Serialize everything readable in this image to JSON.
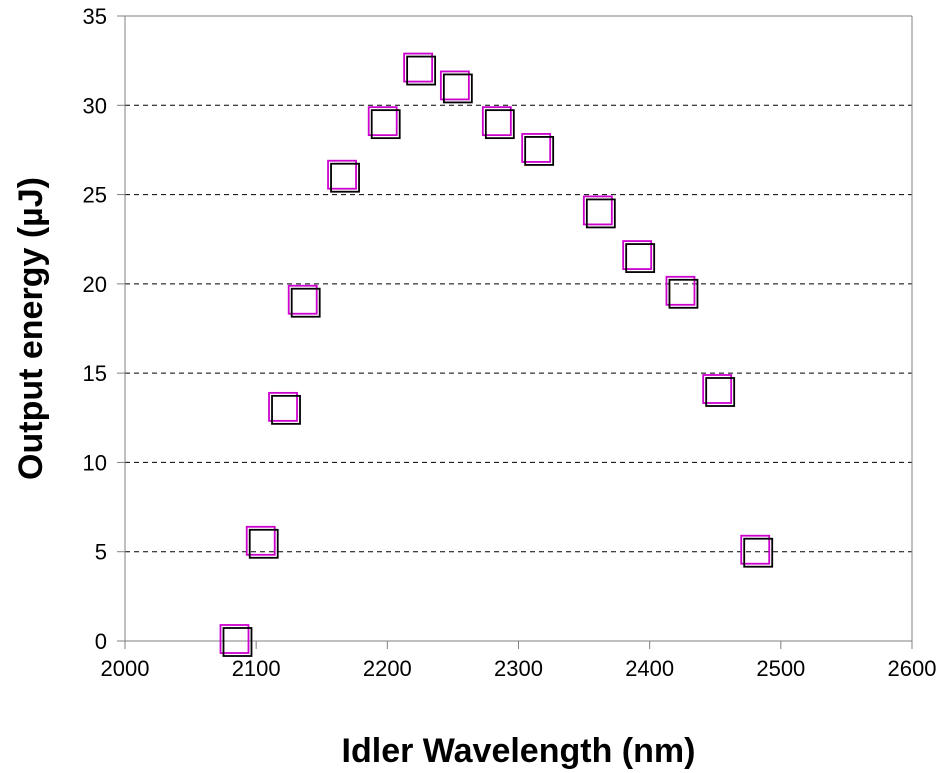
{
  "chart_data": {
    "type": "scatter",
    "title": "",
    "xlabel": "Idler Wavelength (nm)",
    "ylabel": "Output energy (µJ)",
    "xlim": [
      2000,
      2600
    ],
    "ylim": [
      0,
      35
    ],
    "xticks": [
      2000,
      2100,
      2200,
      2300,
      2400,
      2500,
      2600
    ],
    "yticks": [
      0,
      5,
      10,
      15,
      20,
      25,
      30,
      35
    ],
    "grid": "horizontal dashed",
    "marker": "hollow square",
    "colors": {
      "marker_front": "#000000",
      "marker_back": "#cc00cc",
      "grid": "#000000",
      "axis": "#808080"
    },
    "series": [
      {
        "x": [
          2085,
          2105,
          2122,
          2137,
          2167,
          2198,
          2225,
          2253,
          2285,
          2315,
          2362,
          2392,
          2425,
          2453,
          2482
        ],
        "y": [
          0,
          5.5,
          13,
          19,
          26,
          29,
          32,
          31,
          29,
          27.5,
          24,
          21.5,
          19.5,
          14,
          5
        ]
      }
    ]
  }
}
